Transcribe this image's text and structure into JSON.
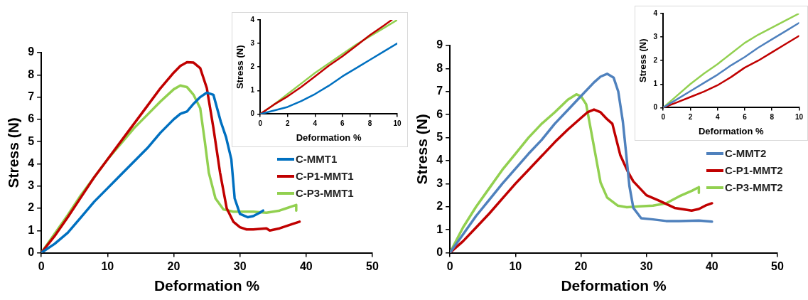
{
  "chart_data": [
    {
      "type": "line",
      "xlabel": "Deformation %",
      "ylabel": "Stress (N)",
      "xlim": [
        0,
        50
      ],
      "xticks": [
        0,
        10,
        20,
        30,
        40,
        50
      ],
      "ylim": [
        0,
        9
      ],
      "yticks": [
        0,
        1,
        2,
        3,
        4,
        5,
        6,
        7,
        8,
        9
      ],
      "grid": false,
      "legend": "right",
      "marker": "none",
      "series": [
        {
          "name": "C-MMT1",
          "color": "#0070c0",
          "x": [
            0,
            2,
            4,
            6,
            8,
            10,
            12,
            14,
            16,
            18,
            20,
            21,
            22,
            23,
            24,
            25,
            26,
            27.1,
            27.9,
            28.7,
            29.2,
            30,
            31.2,
            32,
            33,
            33.5
          ],
          "values": [
            0,
            0.4,
            0.9,
            1.6,
            2.3,
            2.9,
            3.5,
            4.1,
            4.7,
            5.4,
            6.0,
            6.25,
            6.35,
            6.7,
            7.0,
            7.2,
            7.1,
            5.9,
            5.2,
            4.2,
            2.45,
            1.75,
            1.6,
            1.65,
            1.8,
            1.9
          ]
        },
        {
          "name": "C-P1-MMT1",
          "color": "#c00000",
          "x": [
            0,
            2,
            4,
            6,
            8,
            10,
            12,
            14,
            16,
            18,
            20,
            21,
            22,
            23,
            24,
            25,
            26,
            27,
            28,
            29,
            30,
            31,
            32,
            34,
            34.5,
            36,
            38,
            39
          ],
          "values": [
            0,
            0.75,
            1.6,
            2.5,
            3.4,
            4.2,
            5.0,
            5.8,
            6.6,
            7.4,
            8.1,
            8.4,
            8.57,
            8.55,
            8.3,
            7.4,
            5.6,
            3.6,
            2.0,
            1.4,
            1.15,
            1.05,
            1.05,
            1.1,
            1.0,
            1.1,
            1.3,
            1.4
          ]
        },
        {
          "name": "C-P3-MMT1",
          "color": "#92d050",
          "x": [
            0,
            2,
            4,
            6,
            8,
            10,
            12,
            14,
            16,
            18,
            20,
            21,
            22,
            23,
            24,
            24.7,
            25.3,
            26.3,
            27.5,
            29,
            30,
            32,
            34,
            36,
            37,
            38,
            38.5,
            38.5
          ],
          "values": [
            0,
            0.85,
            1.7,
            2.6,
            3.4,
            4.2,
            4.9,
            5.6,
            6.2,
            6.8,
            7.35,
            7.52,
            7.45,
            7.1,
            6.5,
            5.0,
            3.6,
            2.45,
            1.95,
            1.85,
            1.85,
            1.85,
            1.8,
            1.9,
            2.0,
            2.1,
            2.15,
            1.9
          ]
        }
      ]
    },
    {
      "type": "line",
      "xlabel": "Deformation %",
      "ylabel": "Stress (N)",
      "xlim": [
        0,
        10
      ],
      "xticks": [
        0,
        2,
        4,
        6,
        8,
        10
      ],
      "ylim": [
        0,
        4
      ],
      "yticks": [
        0,
        1,
        2,
        3,
        4
      ],
      "grid": false,
      "marker": "none",
      "series": [
        {
          "color": "#0070c0",
          "x": [
            0,
            1,
            2,
            3,
            4,
            5,
            6,
            7,
            8,
            9,
            10
          ],
          "values": [
            0,
            0.15,
            0.3,
            0.55,
            0.85,
            1.2,
            1.6,
            1.95,
            2.3,
            2.65,
            3.0
          ]
        },
        {
          "color": "#c00000",
          "x": [
            0,
            1,
            2,
            3,
            4,
            5,
            6,
            7,
            8,
            9,
            9.6
          ],
          "values": [
            0,
            0.4,
            0.75,
            1.15,
            1.6,
            2.05,
            2.45,
            2.9,
            3.35,
            3.75,
            4.0
          ]
        },
        {
          "color": "#92d050",
          "x": [
            0,
            1,
            2,
            3,
            4,
            5,
            6,
            7,
            8,
            9,
            10
          ],
          "values": [
            0,
            0.4,
            0.85,
            1.3,
            1.75,
            2.15,
            2.55,
            2.95,
            3.3,
            3.65,
            4.0
          ]
        }
      ]
    },
    {
      "type": "line",
      "xlabel": "Deformation %",
      "ylabel": "Stress (N)",
      "xlim": [
        0,
        50
      ],
      "xticks": [
        0,
        10,
        20,
        30,
        40,
        50
      ],
      "ylim": [
        0,
        9
      ],
      "yticks": [
        0,
        1,
        2,
        3,
        4,
        5,
        6,
        7,
        8,
        9
      ],
      "grid": false,
      "legend": "right",
      "marker": "none",
      "series": [
        {
          "name": "C-MMT2",
          "color": "#4f81bd",
          "x": [
            0,
            2,
            4,
            6,
            8,
            10,
            12,
            14,
            16,
            18,
            20,
            22,
            23,
            24,
            25,
            25.7,
            26.4,
            26.8,
            27.4,
            28,
            29.2,
            31,
            33,
            35,
            38,
            40
          ],
          "values": [
            0,
            0.8,
            1.6,
            2.3,
            3.0,
            3.65,
            4.3,
            4.9,
            5.6,
            6.2,
            6.8,
            7.4,
            7.65,
            7.77,
            7.6,
            7.0,
            5.7,
            4.6,
            2.9,
            1.95,
            1.5,
            1.45,
            1.38,
            1.38,
            1.4,
            1.35
          ]
        },
        {
          "name": "C-P1-MMT2",
          "color": "#c00000",
          "x": [
            0,
            2,
            4,
            6,
            8,
            10,
            12,
            14,
            16,
            18,
            20,
            21,
            22,
            23,
            24,
            24.8,
            26,
            27.2,
            28,
            29,
            30,
            31.9,
            34.3,
            36.9,
            38,
            39,
            40
          ],
          "values": [
            0,
            0.5,
            1.1,
            1.7,
            2.35,
            3.0,
            3.6,
            4.2,
            4.8,
            5.35,
            5.85,
            6.1,
            6.22,
            6.1,
            5.8,
            5.6,
            4.25,
            3.5,
            3.1,
            2.8,
            2.5,
            2.27,
            1.95,
            1.83,
            1.9,
            2.05,
            2.15
          ]
        },
        {
          "name": "C-P3-MMT2",
          "color": "#92d050",
          "x": [
            0,
            2,
            4,
            6,
            8,
            10,
            12,
            14,
            16,
            18,
            19.3,
            20,
            20.8,
            22,
            23,
            24,
            25.6,
            27,
            29,
            31,
            33,
            35,
            37,
            38,
            38
          ],
          "values": [
            0,
            1.1,
            2.0,
            2.8,
            3.6,
            4.3,
            5.0,
            5.6,
            6.1,
            6.65,
            6.88,
            6.8,
            6.45,
            4.6,
            3.05,
            2.4,
            2.05,
            1.98,
            2.02,
            2.05,
            2.15,
            2.45,
            2.7,
            2.85,
            2.6
          ]
        }
      ]
    },
    {
      "type": "line",
      "xlabel": "Deformation %",
      "ylabel": "Stress (N)",
      "xlim": [
        0,
        10
      ],
      "xticks": [
        0,
        2,
        4,
        6,
        8,
        10
      ],
      "ylim": [
        0,
        4
      ],
      "yticks": [
        0,
        1,
        2,
        3,
        4
      ],
      "grid": false,
      "marker": "none",
      "series": [
        {
          "color": "#4f81bd",
          "x": [
            0,
            1,
            2,
            3,
            4,
            5,
            6,
            7,
            8,
            9,
            10
          ],
          "values": [
            0,
            0.35,
            0.7,
            1.05,
            1.4,
            1.8,
            2.15,
            2.55,
            2.9,
            3.25,
            3.6
          ]
        },
        {
          "color": "#c00000",
          "x": [
            0,
            1,
            2,
            3,
            4,
            5,
            6,
            7,
            8,
            9,
            10
          ],
          "values": [
            0,
            0.22,
            0.45,
            0.68,
            0.95,
            1.3,
            1.7,
            2.0,
            2.35,
            2.7,
            3.05
          ]
        },
        {
          "color": "#92d050",
          "x": [
            0,
            1,
            2,
            3,
            4,
            5,
            6,
            7,
            8,
            9,
            10
          ],
          "values": [
            0,
            0.5,
            1.0,
            1.45,
            1.85,
            2.3,
            2.75,
            3.1,
            3.4,
            3.7,
            4.0
          ]
        }
      ]
    }
  ]
}
